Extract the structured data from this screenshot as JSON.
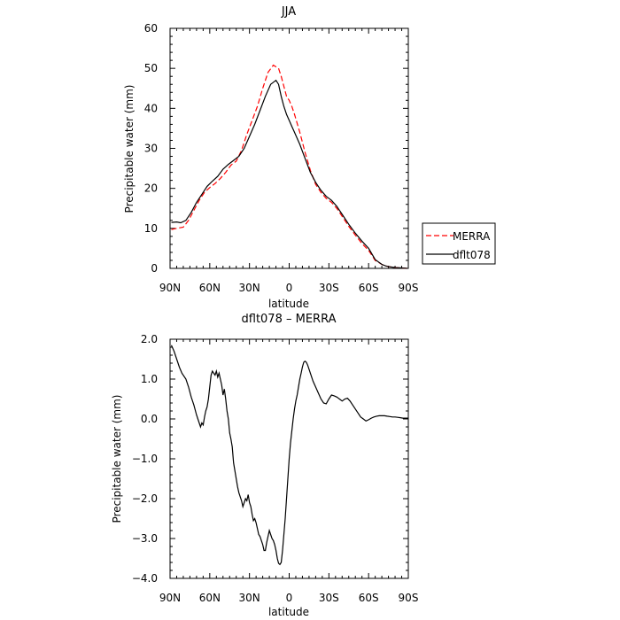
{
  "chart_data": [
    {
      "type": "line",
      "title": "JJA",
      "xlabel": "latitude",
      "ylabel": "Precipitable water (mm)",
      "xlim": [
        90,
        -90
      ],
      "ylim": [
        0,
        60
      ],
      "x_ticks": [
        90,
        60,
        30,
        0,
        -30,
        -60,
        -90
      ],
      "x_tick_labels": [
        "90N",
        "60N",
        "30N",
        "0",
        "30S",
        "60S",
        "90S"
      ],
      "y_ticks": [
        0,
        10,
        20,
        30,
        40,
        50,
        60
      ],
      "y_tick_labels": [
        "0",
        "10",
        "20",
        "30",
        "40",
        "50",
        "60"
      ],
      "legend_position": "right",
      "grid": false,
      "series": [
        {
          "name": "MERRA",
          "color": "#ff0000",
          "dash": "dashed",
          "x": [
            89,
            85,
            80,
            76,
            72,
            68,
            64,
            60,
            56,
            52,
            48,
            44,
            40,
            36,
            32,
            28,
            24,
            20,
            16,
            12,
            8,
            6,
            4,
            2,
            0,
            -2,
            -4,
            -8,
            -12,
            -16,
            -20,
            -24,
            -28,
            -32,
            -36,
            -40,
            -45,
            -50,
            -55,
            -60,
            -65,
            -70,
            -73,
            -76,
            -80,
            -85,
            -89
          ],
          "y": [
            9.7,
            10.0,
            10.3,
            12.0,
            14.5,
            17.0,
            19.0,
            20.2,
            21.2,
            22.5,
            24.0,
            25.8,
            26.8,
            29.5,
            33.5,
            37.0,
            40.5,
            45.0,
            49.0,
            50.8,
            50.0,
            48.0,
            45.5,
            43.0,
            42.0,
            40.5,
            38.5,
            34.0,
            29.0,
            24.5,
            21.0,
            19.0,
            17.5,
            16.5,
            15.0,
            13.0,
            10.5,
            8.3,
            6.2,
            4.5,
            2.0,
            1.0,
            0.6,
            0.4,
            0.2,
            0.1,
            0.0
          ]
        },
        {
          "name": "dflt078",
          "color": "#000000",
          "dash": "solid",
          "x": [
            89,
            85,
            82,
            78,
            74,
            70,
            66,
            62,
            58,
            54,
            50,
            46,
            42,
            38,
            34,
            30,
            26,
            22,
            18,
            14,
            10,
            8,
            6,
            4,
            2,
            0,
            -2,
            -4,
            -8,
            -12,
            -16,
            -20,
            -24,
            -28,
            -32,
            -36,
            -40,
            -45,
            -50,
            -55,
            -60,
            -65,
            -70,
            -73,
            -76,
            -80,
            -85,
            -89
          ],
          "y": [
            11.5,
            11.6,
            11.4,
            12.0,
            14.0,
            16.5,
            18.5,
            20.5,
            21.8,
            23.0,
            24.8,
            26.0,
            27.0,
            28.0,
            30.0,
            33.0,
            36.0,
            39.5,
            43.0,
            46.0,
            47.0,
            46.0,
            43.0,
            40.5,
            38.5,
            37.0,
            35.5,
            34.0,
            31.0,
            27.5,
            24.0,
            21.5,
            19.5,
            18.0,
            17.0,
            15.5,
            13.5,
            11.0,
            8.8,
            6.8,
            5.0,
            2.2,
            1.0,
            0.6,
            0.4,
            0.2,
            0.1,
            0.0
          ]
        }
      ]
    },
    {
      "type": "line",
      "title": "dflt078 – MERRA",
      "xlabel": "latitude",
      "ylabel": "Precipitable water (mm)",
      "xlim": [
        90,
        -90
      ],
      "ylim": [
        -4.0,
        2.0
      ],
      "x_ticks": [
        90,
        60,
        30,
        0,
        -30,
        -60,
        -90
      ],
      "x_tick_labels": [
        "90N",
        "60N",
        "30N",
        "0",
        "30S",
        "60S",
        "90S"
      ],
      "y_ticks": [
        2.0,
        1.0,
        0.0,
        -1.0,
        -2.0,
        -3.0,
        -4.0
      ],
      "y_tick_labels": [
        "2.0",
        "1.0",
        "0.0",
        "−1.0",
        "−2.0",
        "−3.0",
        "−4.0"
      ],
      "grid": false,
      "series": [
        {
          "color": "#000000",
          "dash": "solid",
          "x": [
            89,
            87,
            85,
            83,
            81,
            78,
            76,
            74,
            72,
            70,
            69,
            68,
            67,
            66,
            65,
            64,
            63,
            62,
            61,
            60,
            59,
            58,
            57,
            56,
            55,
            54,
            53,
            52,
            51,
            50,
            49,
            48,
            47,
            46,
            45,
            44,
            43,
            42,
            41,
            40,
            39,
            38,
            37,
            36,
            35,
            34,
            33,
            32,
            31,
            30,
            29,
            28,
            27,
            26,
            25,
            24,
            23,
            22,
            21,
            20,
            19,
            18,
            17,
            16,
            15,
            14,
            13,
            12,
            11,
            10,
            9,
            8,
            7,
            6,
            5,
            4,
            3,
            2,
            1,
            0,
            -1,
            -2,
            -3,
            -4,
            -5,
            -6,
            -7,
            -8,
            -9,
            -10,
            -11,
            -12,
            -13,
            -14,
            -15,
            -16,
            -17,
            -18,
            -20,
            -22,
            -24,
            -26,
            -28,
            -30,
            -32,
            -34,
            -36,
            -38,
            -40,
            -42,
            -44,
            -46,
            -48,
            -50,
            -52,
            -54,
            -56,
            -58,
            -60,
            -62,
            -64,
            -66,
            -68,
            -70,
            -72,
            -74,
            -76,
            -78,
            -80,
            -82,
            -84,
            -86,
            -88,
            -90
          ],
          "y": [
            1.85,
            1.7,
            1.5,
            1.3,
            1.15,
            1.0,
            0.8,
            0.55,
            0.35,
            0.1,
            0.0,
            -0.1,
            -0.2,
            -0.1,
            -0.15,
            0.05,
            0.2,
            0.3,
            0.5,
            0.8,
            1.1,
            1.2,
            1.15,
            1.1,
            1.2,
            1.05,
            1.15,
            1.0,
            0.85,
            0.6,
            0.75,
            0.5,
            0.2,
            0.0,
            -0.35,
            -0.5,
            -0.7,
            -1.1,
            -1.3,
            -1.5,
            -1.7,
            -1.85,
            -1.95,
            -2.05,
            -2.2,
            -2.1,
            -2.0,
            -2.05,
            -1.9,
            -2.1,
            -2.2,
            -2.4,
            -2.55,
            -2.5,
            -2.6,
            -2.75,
            -2.9,
            -2.95,
            -3.05,
            -3.15,
            -3.3,
            -3.3,
            -3.1,
            -2.95,
            -2.8,
            -2.9,
            -3.0,
            -3.05,
            -3.15,
            -3.3,
            -3.5,
            -3.62,
            -3.65,
            -3.6,
            -3.3,
            -2.9,
            -2.5,
            -2.0,
            -1.5,
            -1.0,
            -0.6,
            -0.3,
            0.0,
            0.25,
            0.45,
            0.6,
            0.8,
            1.0,
            1.15,
            1.3,
            1.42,
            1.45,
            1.42,
            1.35,
            1.25,
            1.15,
            1.05,
            0.95,
            0.8,
            0.65,
            0.5,
            0.4,
            0.38,
            0.5,
            0.6,
            0.58,
            0.55,
            0.5,
            0.45,
            0.5,
            0.52,
            0.45,
            0.35,
            0.25,
            0.15,
            0.05,
            0.0,
            -0.05,
            -0.02,
            0.02,
            0.05,
            0.07,
            0.08,
            0.08,
            0.08,
            0.07,
            0.06,
            0.05,
            0.05,
            0.04,
            0.03,
            0.02,
            0.02,
            0.02
          ]
        }
      ]
    }
  ]
}
